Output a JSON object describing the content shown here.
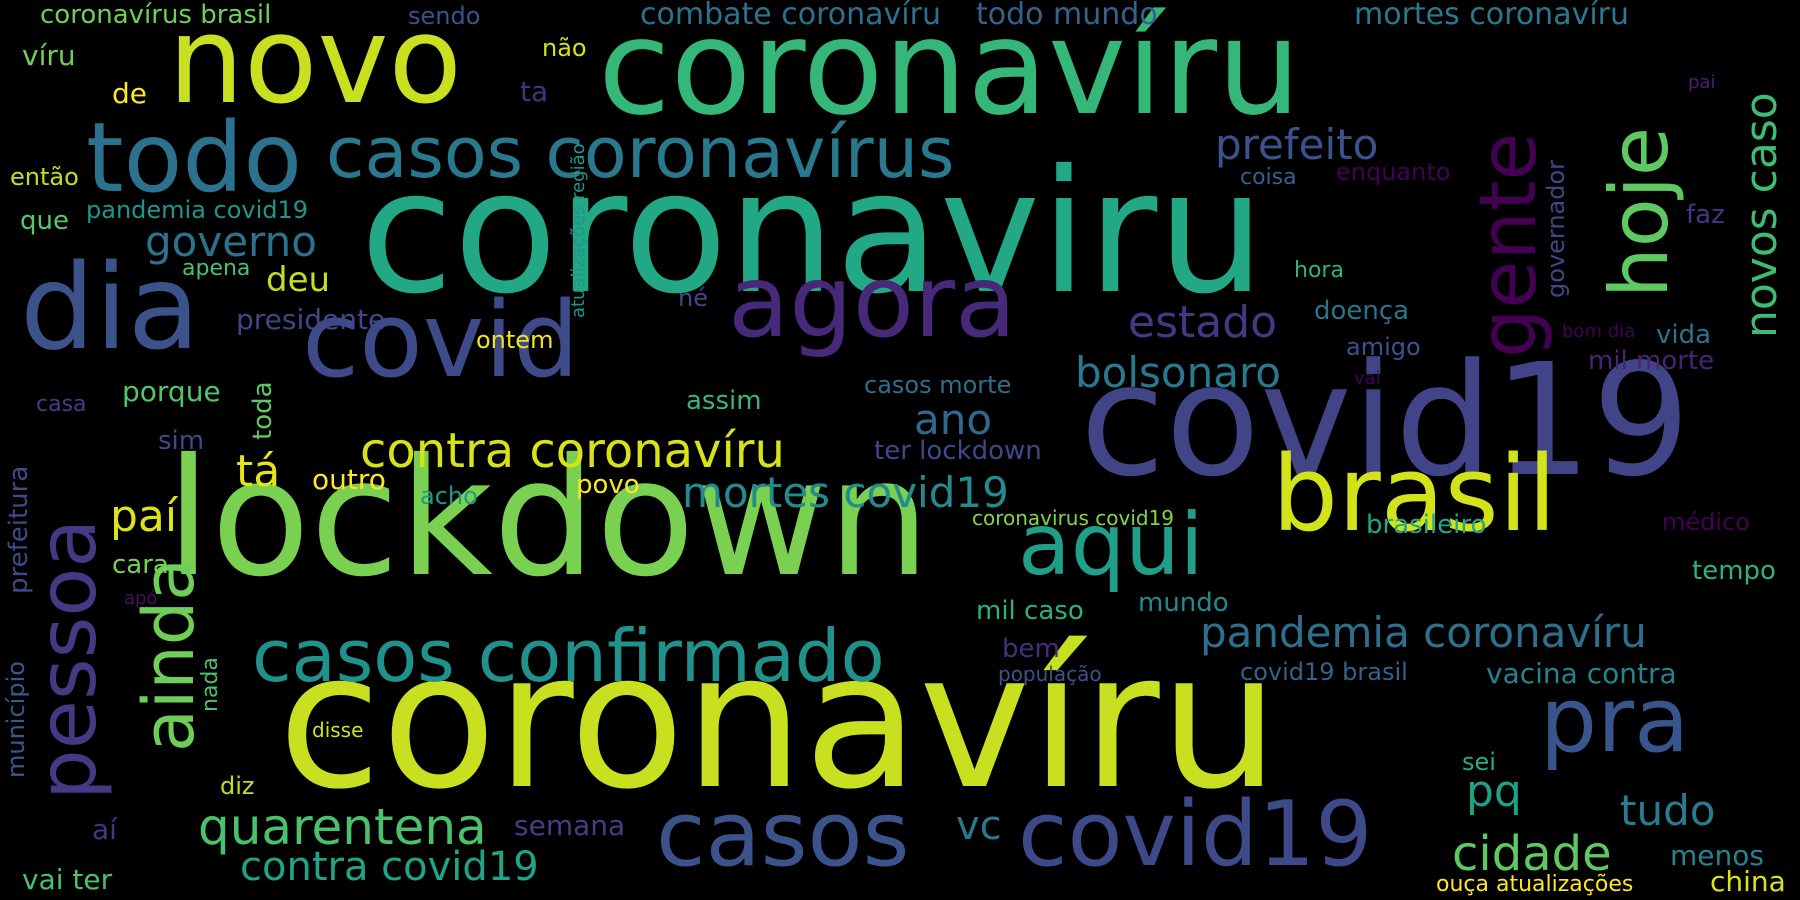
{
  "background": "#000000",
  "palette": "viridis",
  "words": [
    {
      "text": "coronavíru",
      "color": "#c8e020"
    },
    {
      "text": "coronaviru",
      "color": "#22a884"
    },
    {
      "text": "coronavíru",
      "color": "#35b779"
    },
    {
      "text": "lockdown",
      "color": "#7ad151"
    },
    {
      "text": "covid19",
      "color": "#414487"
    },
    {
      "text": "novo",
      "color": "#c8e020"
    },
    {
      "text": "dia",
      "color": "#3b528b"
    },
    {
      "text": "todo",
      "color": "#2c728e"
    },
    {
      "text": "agora",
      "color": "#482878"
    },
    {
      "text": "covid",
      "color": "#3e4a89"
    },
    {
      "text": "pessoa",
      "color": "#443983"
    },
    {
      "text": "brasil",
      "color": "#d2e21b"
    },
    {
      "text": "casos",
      "color": "#3b528b"
    },
    {
      "text": "covid19",
      "color": "#3e4989"
    },
    {
      "text": "pra",
      "color": "#39568c"
    },
    {
      "text": "aqui",
      "color": "#1f9e89"
    },
    {
      "text": "casos confirmado",
      "color": "#21918c"
    },
    {
      "text": "hoje",
      "color": "#5ec962"
    },
    {
      "text": "gente",
      "color": "#440154"
    },
    {
      "text": "casos coronavírus",
      "color": "#2a788e"
    },
    {
      "text": "ainda",
      "color": "#6ece58"
    },
    {
      "text": "pandemia coronavíru",
      "color": "#2d708e"
    },
    {
      "text": "novos caso",
      "color": "#3fbc73"
    },
    {
      "text": "contra coronavíru",
      "color": "#d8e219"
    },
    {
      "text": "mortes covid19",
      "color": "#238a8d"
    },
    {
      "text": "quarentena",
      "color": "#4ac16d"
    },
    {
      "text": "cidade",
      "color": "#5ec962"
    },
    {
      "text": "bolsonaro",
      "color": "#2a788e"
    },
    {
      "text": "estado",
      "color": "#453781"
    },
    {
      "text": "prefeito",
      "color": "#3b528b"
    },
    {
      "text": "governo",
      "color": "#2c728e"
    },
    {
      "text": "contra covid19",
      "color": "#20a486"
    },
    {
      "text": "ano",
      "color": "#31688e"
    },
    {
      "text": "tá",
      "color": "#e5e419"
    },
    {
      "text": "paí",
      "color": "#dde318"
    },
    {
      "text": "pq",
      "color": "#1fa188"
    },
    {
      "text": "vc",
      "color": "#2a788e"
    },
    {
      "text": "tudo",
      "color": "#287c8e"
    },
    {
      "text": "deu",
      "color": "#c0df25"
    },
    {
      "text": "mortes coronavíru",
      "color": "#2a788e"
    },
    {
      "text": "combate coronavíru",
      "color": "#2c728e"
    },
    {
      "text": "todo mundo",
      "color": "#33638d"
    },
    {
      "text": "coronavírus brasil",
      "color": "#6ece58"
    },
    {
      "text": "sendo",
      "color": "#3b528b"
    },
    {
      "text": "víru",
      "color": "#6ece58"
    },
    {
      "text": "não",
      "color": "#d8e219"
    },
    {
      "text": "de",
      "color": "#fde725"
    },
    {
      "text": "ta",
      "color": "#46327e"
    },
    {
      "text": "então",
      "color": "#c2df23"
    },
    {
      "text": "que",
      "color": "#58c765"
    },
    {
      "text": "pandemia covid19",
      "color": "#1f968b"
    },
    {
      "text": "apena",
      "color": "#4ac16d"
    },
    {
      "text": "atualizações região",
      "color": "#1f988b"
    },
    {
      "text": "coisa",
      "color": "#35608d"
    },
    {
      "text": "enquanto",
      "color": "#440154"
    },
    {
      "text": "governador",
      "color": "#3f4788"
    },
    {
      "text": "faz",
      "color": "#453781"
    },
    {
      "text": "pai",
      "color": "#482173"
    },
    {
      "text": "hora",
      "color": "#2eb37c"
    },
    {
      "text": "né",
      "color": "#404688"
    },
    {
      "text": "presidente",
      "color": "#3f4788"
    },
    {
      "text": "doença",
      "color": "#2c728e"
    },
    {
      "text": "amigo",
      "color": "#3b528b"
    },
    {
      "text": "bom dia",
      "color": "#440154"
    },
    {
      "text": "vida",
      "color": "#2c728e"
    },
    {
      "text": "ontem",
      "color": "#f1e51d"
    },
    {
      "text": "mil morte",
      "color": "#482475"
    },
    {
      "text": "vai",
      "color": "#440154"
    },
    {
      "text": "casos morte",
      "color": "#2e6e8e"
    },
    {
      "text": "casa",
      "color": "#433e85"
    },
    {
      "text": "porque",
      "color": "#52c569"
    },
    {
      "text": "toda",
      "color": "#5ec962"
    },
    {
      "text": "assim",
      "color": "#35b779"
    },
    {
      "text": "sim",
      "color": "#3e4a89"
    },
    {
      "text": "outro",
      "color": "#fde725"
    },
    {
      "text": "prefeitura",
      "color": "#3e4a89"
    },
    {
      "text": "acho",
      "color": "#1f9a8a"
    },
    {
      "text": "povo",
      "color": "#fde725"
    },
    {
      "text": "ter lockdown",
      "color": "#3e4989"
    },
    {
      "text": "coronavirus covid19",
      "color": "#84d44b"
    },
    {
      "text": "brasileiro",
      "color": "#22a884"
    },
    {
      "text": "médico",
      "color": "#440154"
    },
    {
      "text": "cara",
      "color": "#7ad151"
    },
    {
      "text": "tempo",
      "color": "#2db27d"
    },
    {
      "text": "apó",
      "color": "#471063"
    },
    {
      "text": "mil caso",
      "color": "#2db27d"
    },
    {
      "text": "mundo",
      "color": "#23898e"
    },
    {
      "text": "município",
      "color": "#38598c"
    },
    {
      "text": "nada",
      "color": "#4ac16d"
    },
    {
      "text": "bem",
      "color": "#462f7e"
    },
    {
      "text": "população",
      "color": "#3b528b"
    },
    {
      "text": "covid19 brasil",
      "color": "#33638d"
    },
    {
      "text": "vacina contra",
      "color": "#25838e"
    },
    {
      "text": "disse",
      "color": "#d2e21b"
    },
    {
      "text": "diz",
      "color": "#bddf26"
    },
    {
      "text": "sei",
      "color": "#27ad81"
    },
    {
      "text": "aí",
      "color": "#453781"
    },
    {
      "text": "semana",
      "color": "#433e85"
    },
    {
      "text": "menos",
      "color": "#26828e"
    },
    {
      "text": "vai ter",
      "color": "#4ac16d"
    },
    {
      "text": "ouça atualizações",
      "color": "#fde725"
    },
    {
      "text": "china",
      "color": "#d8e219"
    }
  ]
}
